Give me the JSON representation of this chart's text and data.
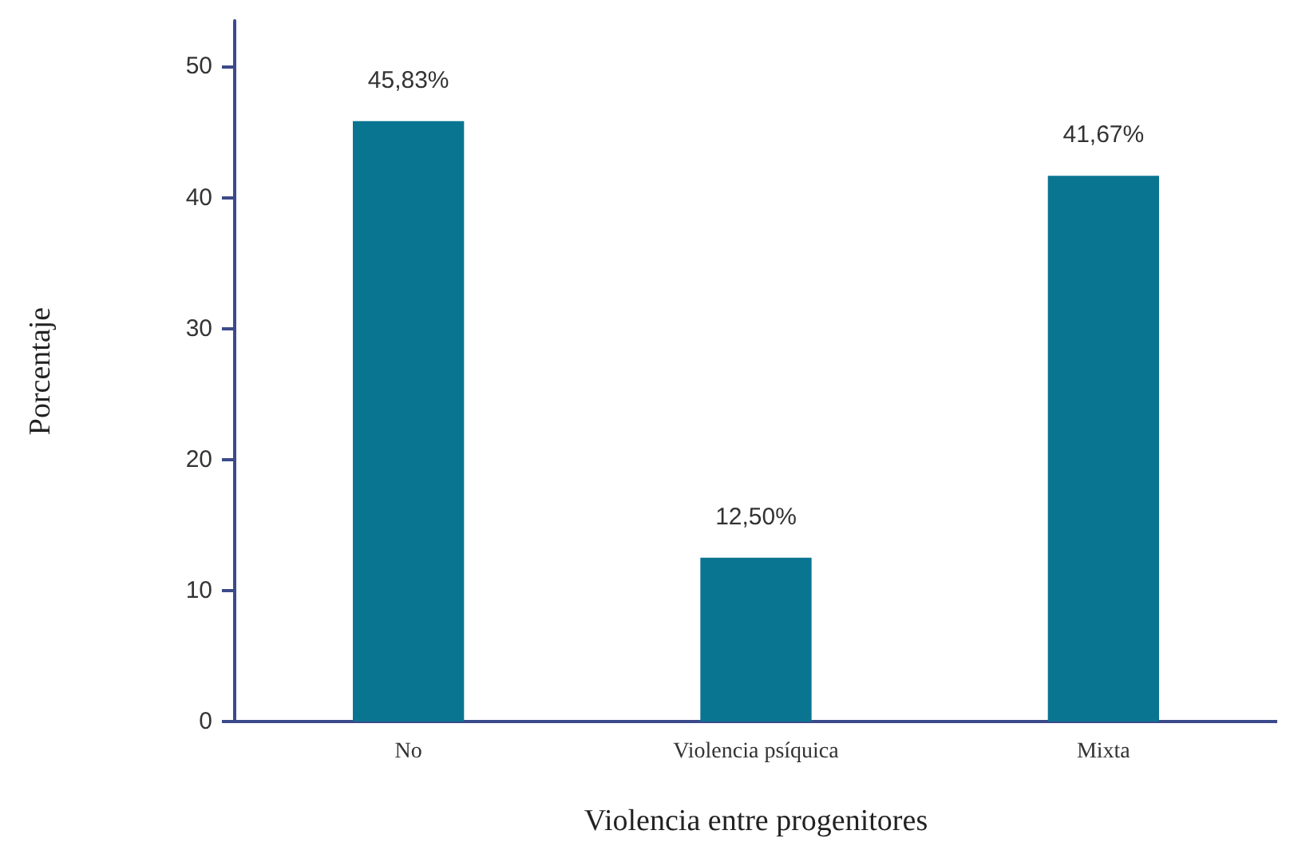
{
  "chart_data": {
    "type": "bar",
    "xlabel": "Violencia entre progenitores",
    "ylabel": "Porcentaje",
    "categories": [
      "No",
      "Violencia psíquica",
      "Mixta"
    ],
    "values": [
      45.83,
      12.5,
      41.67
    ],
    "color": "#0a7590",
    "value_labels": [
      "45,83%",
      "12,50%",
      "41,67%"
    ],
    "ylim": [
      0,
      53.5
    ],
    "yticks": [
      0,
      10,
      20,
      30,
      40,
      50
    ],
    "grid": false
  }
}
